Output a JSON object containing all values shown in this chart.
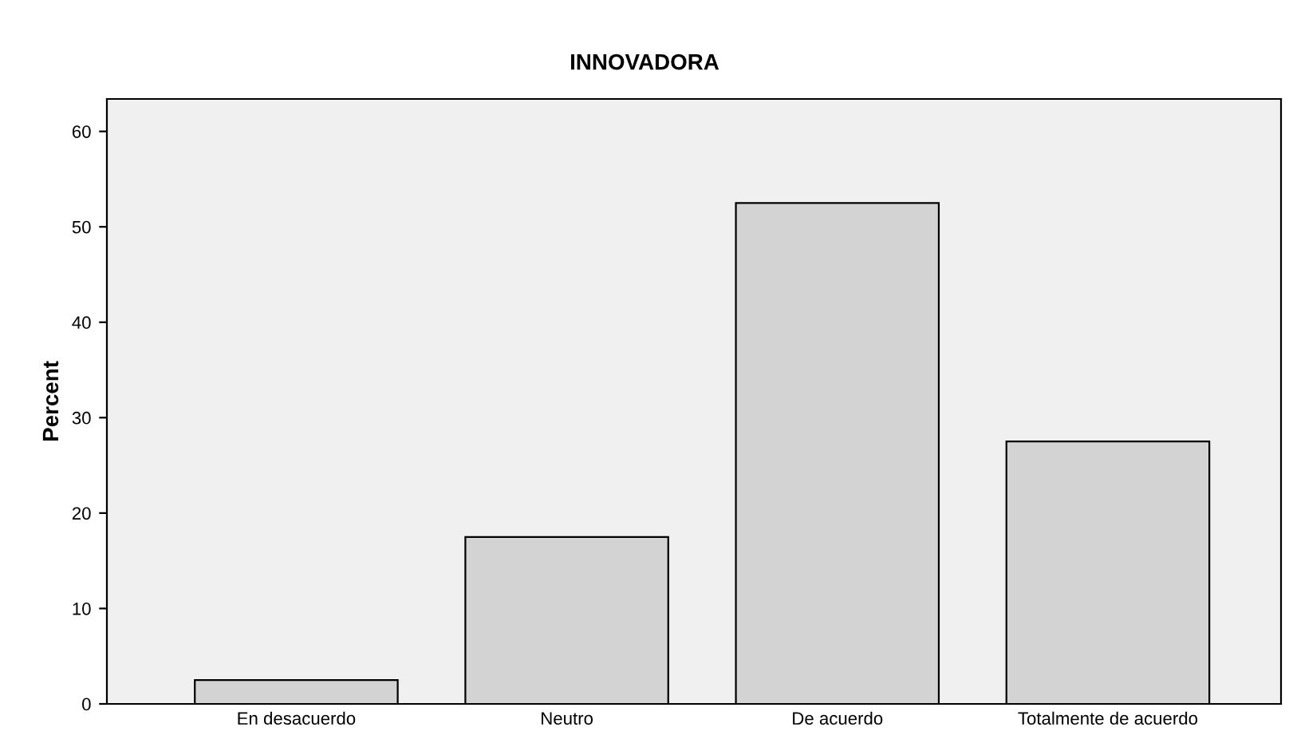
{
  "chart_data": {
    "type": "bar",
    "title": "INNOVADORA",
    "ylabel": "Percent",
    "categories": [
      "En desacuerdo",
      "Neutro",
      "De acuerdo",
      "Totalmente de acuerdo"
    ],
    "values": [
      2.5,
      17.5,
      52.5,
      27.5
    ],
    "color": "#d3d3d3",
    "ylim": [
      0,
      63.4
    ],
    "yticks": [
      0,
      10,
      20,
      30,
      40,
      50,
      60
    ],
    "grid": false,
    "legend": false
  }
}
